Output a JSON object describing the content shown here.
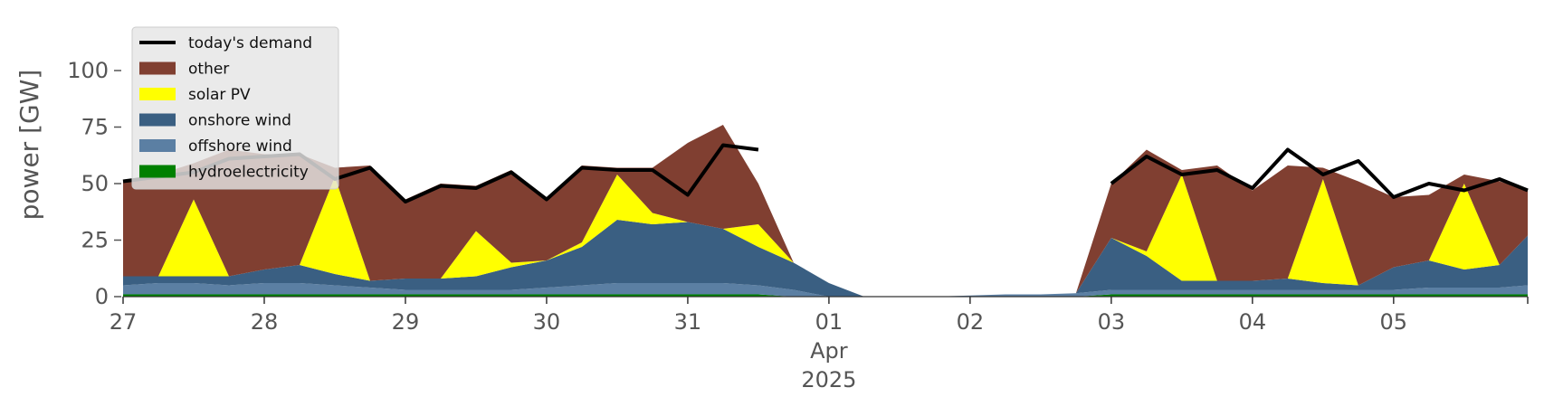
{
  "chart_data": {
    "type": "area",
    "title": "",
    "xlabel": "",
    "ylabel": "power [GW]",
    "ylim": [
      0,
      120
    ],
    "xlim": [
      0,
      9.95
    ],
    "grid": false,
    "legend_position": "top-left",
    "yticks": [
      0,
      25,
      50,
      75,
      100
    ],
    "xticks": [
      {
        "value": 0,
        "label": "27",
        "sub": []
      },
      {
        "value": 1,
        "label": "28",
        "sub": []
      },
      {
        "value": 2,
        "label": "29",
        "sub": []
      },
      {
        "value": 3,
        "label": "30",
        "sub": []
      },
      {
        "value": 4,
        "label": "31",
        "sub": []
      },
      {
        "value": 5,
        "label": "01",
        "sub": [
          "Apr",
          "2025"
        ]
      },
      {
        "value": 6,
        "label": "02",
        "sub": []
      },
      {
        "value": 7,
        "label": "03",
        "sub": []
      },
      {
        "value": 8,
        "label": "04",
        "sub": []
      },
      {
        "value": 9,
        "label": "05",
        "sub": []
      }
    ],
    "x_unit": "days from 27 Mar 2025 00:00",
    "x": [
      0,
      0.25,
      0.5,
      0.75,
      1,
      1.25,
      1.5,
      1.75,
      2,
      2.25,
      2.5,
      2.75,
      3,
      3.25,
      3.5,
      3.75,
      4,
      4.25,
      4.5,
      4.75,
      5,
      5.25,
      5.5,
      5.75,
      6,
      6.25,
      6.5,
      6.75,
      7,
      7.25,
      7.5,
      7.75,
      8,
      8.25,
      8.5,
      8.75,
      9,
      9.25,
      9.5,
      9.75,
      9.95
    ],
    "series": [
      {
        "name": "hydroelectricity",
        "color": "#008000",
        "values": [
          1,
          1,
          1,
          1,
          1,
          1,
          1,
          1,
          1,
          1,
          1,
          1,
          1,
          1,
          1,
          1,
          1,
          1,
          1,
          0,
          0,
          0,
          0,
          0,
          0,
          0,
          0,
          0,
          1,
          1,
          1,
          1,
          1,
          1,
          1,
          1,
          1,
          1,
          1,
          1,
          1
        ]
      },
      {
        "name": "offshore wind",
        "color": "#5b7fa3",
        "values": [
          4,
          5,
          5,
          4,
          5,
          5,
          4,
          3,
          2,
          2,
          2,
          2,
          3,
          4,
          5,
          5,
          5,
          5,
          4,
          3,
          0,
          0,
          0,
          0,
          0.5,
          1,
          1,
          1.5,
          2,
          2,
          2,
          2,
          2,
          2,
          2,
          2,
          2,
          3,
          3,
          3,
          4
        ]
      },
      {
        "name": "onshore wind",
        "color": "#3a5f82",
        "values": [
          4,
          3,
          3,
          4,
          6,
          8,
          5,
          3,
          5,
          5,
          6,
          10,
          12,
          17,
          28,
          26,
          27,
          24,
          17,
          12,
          6,
          0,
          0,
          0,
          0,
          0,
          0,
          0,
          23,
          15,
          4,
          4,
          4,
          5,
          3,
          2,
          10,
          12,
          8,
          10,
          22
        ]
      },
      {
        "name": "solar PV",
        "color": "#ffff00",
        "values": [
          0,
          0,
          34,
          0,
          0,
          0,
          43,
          0,
          0,
          0,
          20,
          2,
          0,
          2,
          20,
          5,
          0,
          0,
          10,
          0,
          0,
          0,
          0,
          0,
          0,
          0,
          0,
          0,
          0,
          2,
          47,
          0,
          0,
          0,
          46,
          0,
          0,
          0,
          38,
          0,
          0
        ]
      },
      {
        "name": "other",
        "color": "#803f31",
        "values": [
          42,
          45,
          16,
          56,
          51,
          49,
          4,
          51,
          35,
          42,
          20,
          41,
          27,
          34,
          3,
          20,
          35,
          46,
          18,
          0,
          0,
          0,
          0,
          0,
          0,
          0,
          0,
          0,
          24,
          45,
          2,
          51,
          40,
          50,
          5,
          46,
          31,
          29,
          4,
          37,
          20
        ]
      }
    ],
    "demand": {
      "name": "today's demand",
      "color": "#000000",
      "values": [
        51,
        53,
        55,
        61,
        62,
        63,
        52,
        57,
        42,
        49,
        48,
        55,
        43,
        57,
        56,
        56,
        45,
        67,
        65,
        null,
        null,
        null,
        null,
        null,
        null,
        null,
        null,
        null,
        50,
        62,
        54,
        56,
        48,
        65,
        54,
        60,
        44,
        50,
        47,
        52,
        47
      ]
    }
  }
}
